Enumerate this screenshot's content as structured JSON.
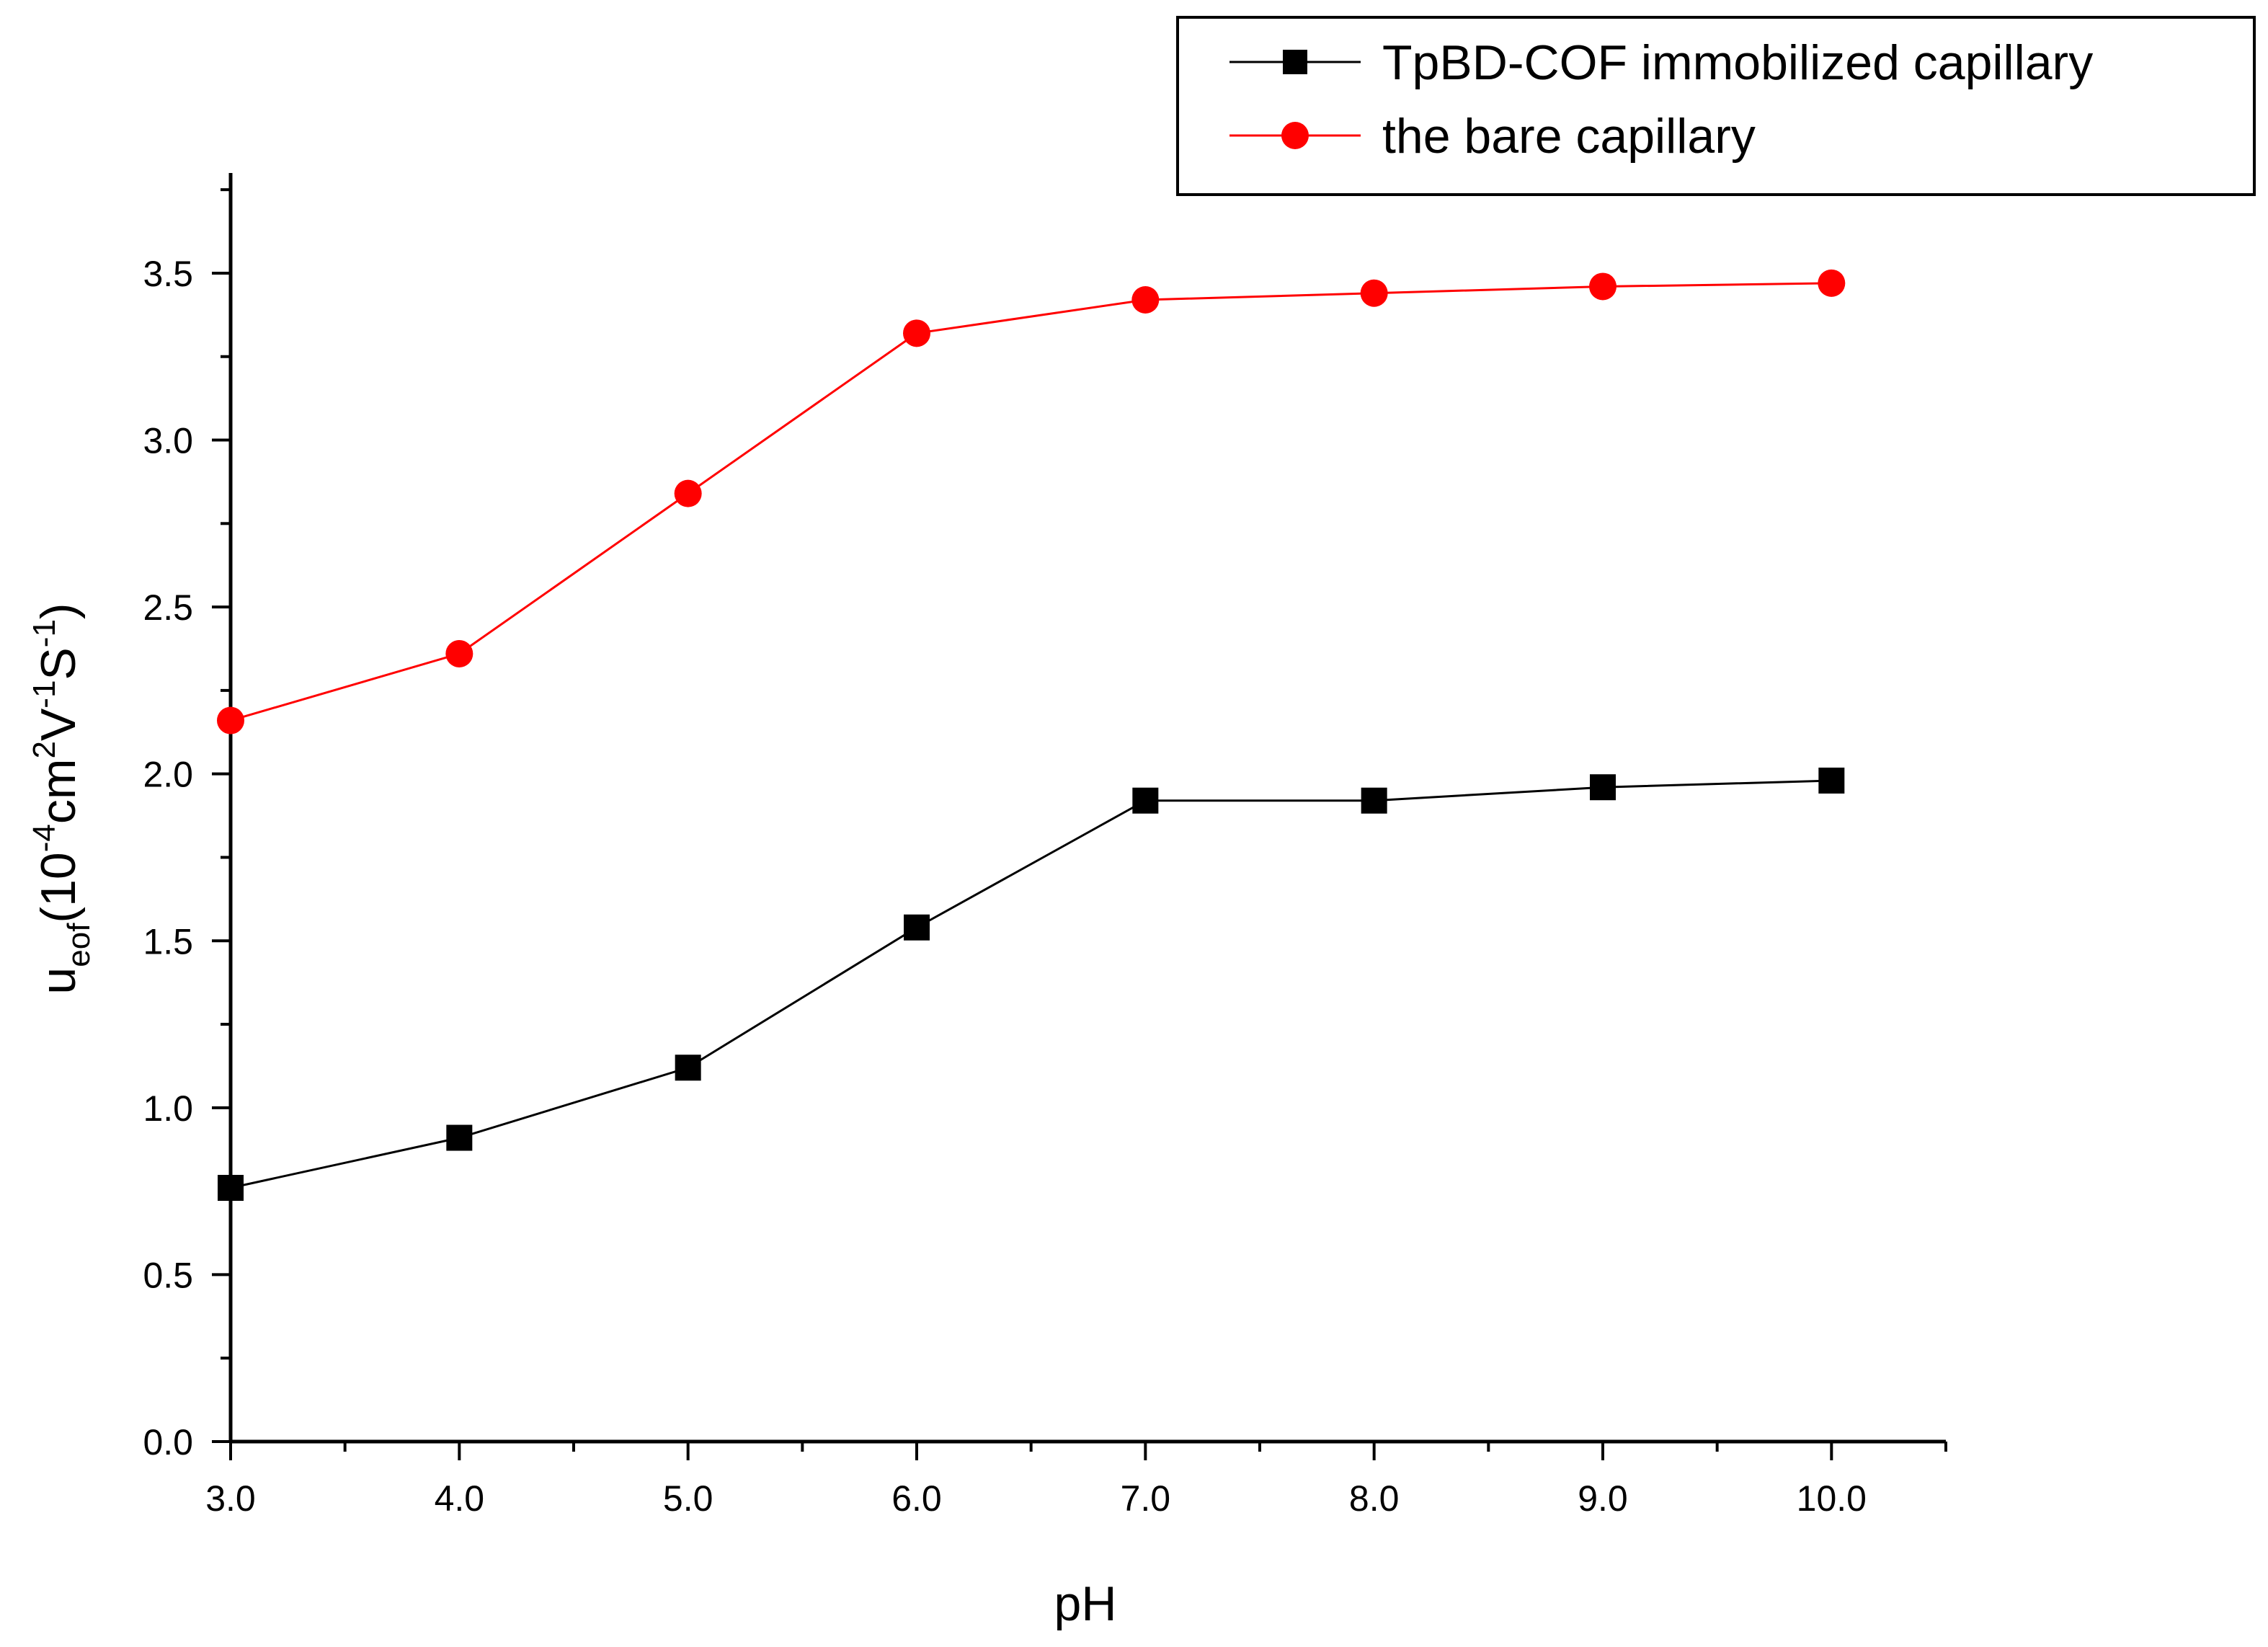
{
  "chart_data": {
    "type": "line",
    "title": "",
    "xlabel": "pH",
    "ylabel": {
      "base": "u",
      "base_sub": "eof",
      "p1": "(10",
      "p1_sup": "-4",
      "p2": "cm",
      "p2_sup": "2",
      "p3": "V",
      "p3_sup": "-1",
      "p4": "S",
      "p4_sup": "-1",
      "p5": ")"
    },
    "xlim": [
      3.0,
      10.5
    ],
    "ylim": [
      0.0,
      3.8
    ],
    "x_ticks": [
      3.0,
      4.0,
      5.0,
      6.0,
      7.0,
      8.0,
      9.0,
      10.0
    ],
    "x_tick_labels": [
      "3.0",
      "4.0",
      "5.0",
      "6.0",
      "7.0",
      "8.0",
      "9.0",
      "10.0"
    ],
    "y_ticks": [
      0.0,
      0.5,
      1.0,
      1.5,
      2.0,
      2.5,
      3.0,
      3.5
    ],
    "y_tick_labels": [
      "0.0",
      "0.5",
      "1.0",
      "1.5",
      "2.0",
      "2.5",
      "3.0",
      "3.5"
    ],
    "grid": false,
    "legend_position": "top-right",
    "x": [
      3,
      4,
      5,
      6,
      7,
      8,
      9,
      10
    ],
    "series": [
      {
        "name": "TpBD-COF immobilized capillary",
        "color": "#000000",
        "marker": "square",
        "values": [
          0.76,
          0.91,
          1.12,
          1.54,
          1.92,
          1.92,
          1.96,
          1.98
        ]
      },
      {
        "name": "the bare capillary",
        "color": "#ff0000",
        "marker": "circle",
        "values": [
          2.16,
          2.36,
          2.84,
          3.32,
          3.42,
          3.44,
          3.46,
          3.47
        ]
      }
    ]
  }
}
